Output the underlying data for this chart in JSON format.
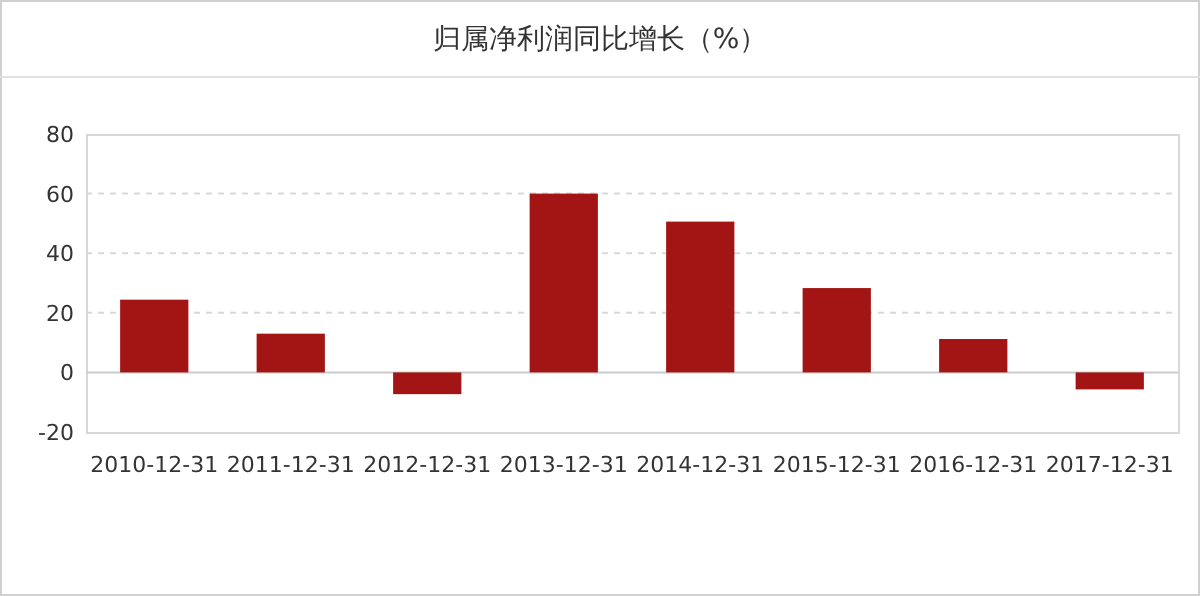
{
  "chart_data": {
    "type": "bar",
    "title": "归属净利润同比增长（%）",
    "categories": [
      "2010-12-31",
      "2011-12-31",
      "2012-12-31",
      "2013-12-31",
      "2014-12-31",
      "2015-12-31",
      "2016-12-31",
      "2017-12-31"
    ],
    "values": [
      24.4,
      13,
      -7.3,
      60,
      50.6,
      28.3,
      11.2,
      -5.7
    ],
    "color": "#a31515",
    "ylim": [
      -20,
      80
    ],
    "yticks": [
      -20,
      0,
      20,
      40,
      60,
      80
    ],
    "grid": "y",
    "legend": false
  }
}
